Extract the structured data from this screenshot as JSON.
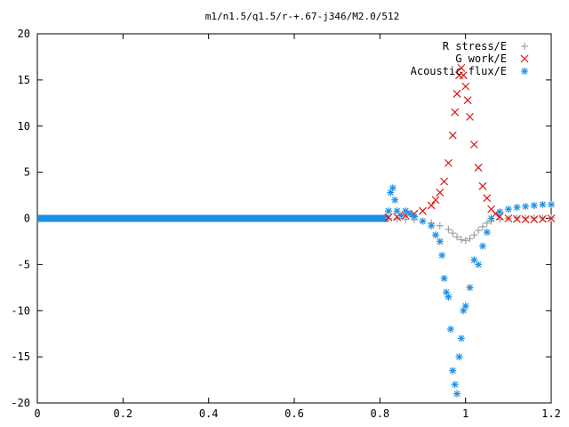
{
  "chart_data": {
    "type": "scatter",
    "title": "m1/n1.5/q1.5/r-+.67-j346/M2.0/512",
    "xlabel": "",
    "ylabel": "",
    "xlim": [
      0,
      1.2
    ],
    "ylim": [
      -20,
      20
    ],
    "x_ticks": [
      "0",
      "0.2",
      "0.4",
      "0.6",
      "0.8",
      "1",
      "1.2"
    ],
    "y_ticks": [
      "20",
      "15",
      "10",
      "5",
      "0",
      "-5",
      "-10",
      "-15",
      "-20"
    ],
    "legend_position": "top-right",
    "grid": false,
    "series": [
      {
        "name": "R stress/E",
        "marker": "+",
        "color": "#a0a0a0",
        "points": [
          [
            0.82,
            0.0
          ],
          [
            0.84,
            -0.05
          ],
          [
            0.86,
            -0.1
          ],
          [
            0.88,
            -0.15
          ],
          [
            0.9,
            -0.3
          ],
          [
            0.92,
            -0.5
          ],
          [
            0.94,
            -0.8
          ],
          [
            0.96,
            -1.2
          ],
          [
            0.97,
            -1.6
          ],
          [
            0.98,
            -2.0
          ],
          [
            0.99,
            -2.3
          ],
          [
            1.0,
            -2.4
          ],
          [
            1.01,
            -2.2
          ],
          [
            1.02,
            -1.8
          ],
          [
            1.03,
            -1.3
          ],
          [
            1.04,
            -0.9
          ],
          [
            1.05,
            -0.5
          ],
          [
            1.06,
            -0.3
          ],
          [
            1.08,
            -0.1
          ],
          [
            1.1,
            0.0
          ],
          [
            1.12,
            0.05
          ],
          [
            1.14,
            0.05
          ],
          [
            1.16,
            0.05
          ],
          [
            1.18,
            0.05
          ],
          [
            1.2,
            0.05
          ]
        ]
      },
      {
        "name": "G work/E",
        "marker": "x",
        "color": "#dd1111",
        "points": [
          [
            0.82,
            0.1
          ],
          [
            0.84,
            0.15
          ],
          [
            0.86,
            0.3
          ],
          [
            0.88,
            0.5
          ],
          [
            0.9,
            0.8
          ],
          [
            0.92,
            1.4
          ],
          [
            0.93,
            2.0
          ],
          [
            0.94,
            2.8
          ],
          [
            0.95,
            4.0
          ],
          [
            0.96,
            6.0
          ],
          [
            0.97,
            9.0
          ],
          [
            0.975,
            11.5
          ],
          [
            0.98,
            13.5
          ],
          [
            0.985,
            15.5
          ],
          [
            0.99,
            16.3
          ],
          [
            0.995,
            15.5
          ],
          [
            1.0,
            14.3
          ],
          [
            1.005,
            12.8
          ],
          [
            1.01,
            11.0
          ],
          [
            1.02,
            8.0
          ],
          [
            1.03,
            5.5
          ],
          [
            1.04,
            3.5
          ],
          [
            1.05,
            2.2
          ],
          [
            1.06,
            1.0
          ],
          [
            1.07,
            0.5
          ],
          [
            1.08,
            0.2
          ],
          [
            1.1,
            0.0
          ],
          [
            1.12,
            -0.05
          ],
          [
            1.14,
            -0.1
          ],
          [
            1.16,
            -0.1
          ],
          [
            1.18,
            -0.05
          ],
          [
            1.2,
            0.0
          ]
        ]
      },
      {
        "name": "Acoustic flux/E",
        "marker": "*",
        "color": "#1f8fe6",
        "points": [
          [
            0.82,
            0.8
          ],
          [
            0.825,
            2.8
          ],
          [
            0.83,
            3.3
          ],
          [
            0.835,
            2.0
          ],
          [
            0.84,
            0.8
          ],
          [
            0.85,
            0.3
          ],
          [
            0.86,
            0.8
          ],
          [
            0.87,
            0.5
          ],
          [
            0.88,
            0.2
          ],
          [
            0.9,
            -0.3
          ],
          [
            0.92,
            -0.8
          ],
          [
            0.93,
            -1.8
          ],
          [
            0.94,
            -2.5
          ],
          [
            0.945,
            -4.0
          ],
          [
            0.95,
            -6.5
          ],
          [
            0.955,
            -8.0
          ],
          [
            0.96,
            -8.5
          ],
          [
            0.965,
            -12.0
          ],
          [
            0.97,
            -16.5
          ],
          [
            0.975,
            -18.0
          ],
          [
            0.98,
            -19.0
          ],
          [
            0.985,
            -15.0
          ],
          [
            0.99,
            -13.0
          ],
          [
            0.995,
            -10.0
          ],
          [
            1.0,
            -9.5
          ],
          [
            1.01,
            -7.5
          ],
          [
            1.02,
            -4.5
          ],
          [
            1.03,
            -5.0
          ],
          [
            1.04,
            -3.0
          ],
          [
            1.05,
            -1.5
          ],
          [
            1.06,
            0.0
          ],
          [
            1.08,
            0.7
          ],
          [
            1.1,
            1.0
          ],
          [
            1.12,
            1.2
          ],
          [
            1.14,
            1.3
          ],
          [
            1.16,
            1.4
          ],
          [
            1.18,
            1.5
          ],
          [
            1.2,
            1.5
          ]
        ]
      }
    ]
  }
}
